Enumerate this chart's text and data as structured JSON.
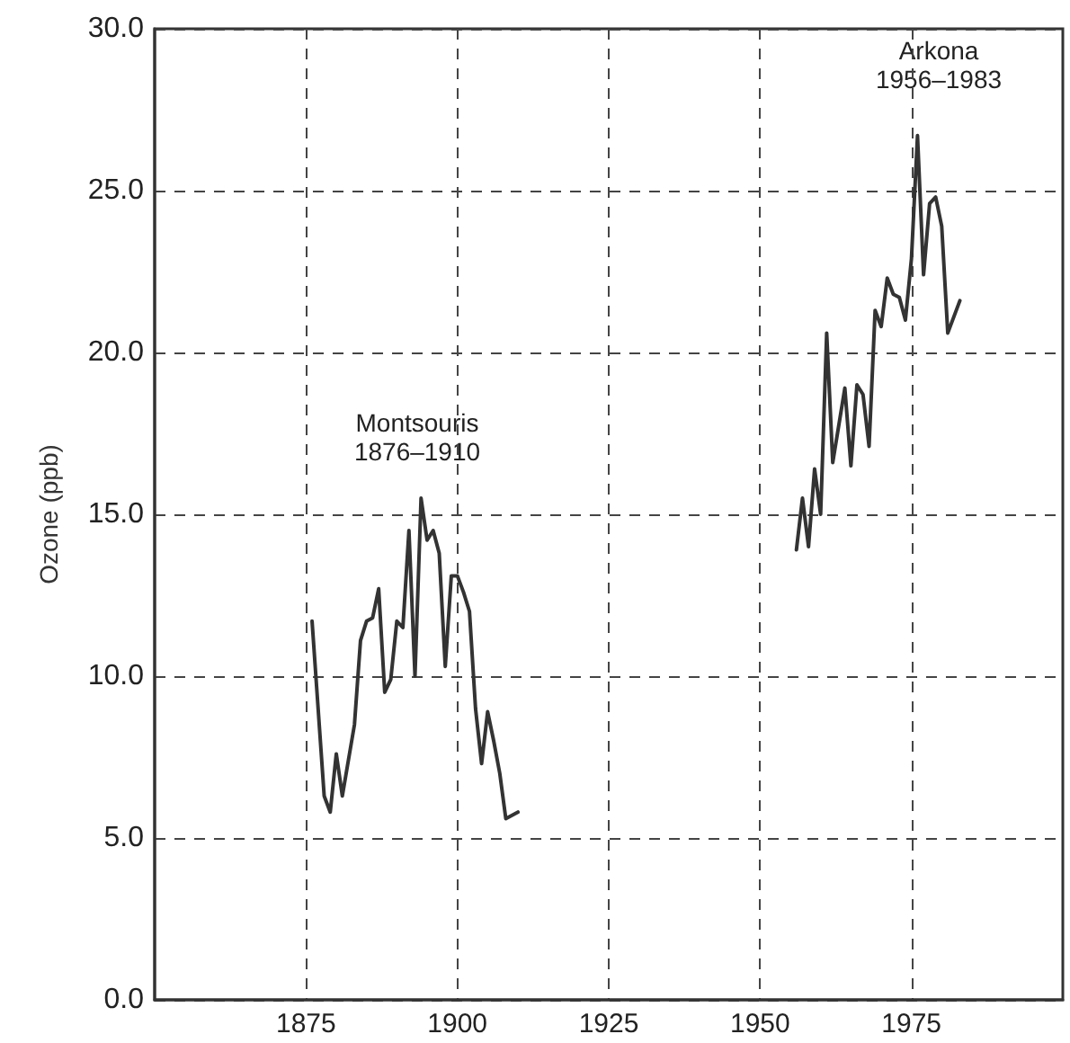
{
  "chart_data": {
    "type": "line",
    "ylabel": "Ozone (ppb)",
    "series": [
      {
        "color": "#333333",
        "x": [
          1876,
          1878,
          1879,
          1880,
          1881,
          1883,
          1884,
          1885,
          1886,
          1887,
          1888,
          1889,
          1890,
          1891,
          1892,
          1893,
          1894,
          1895,
          1896,
          1897,
          1898,
          1899,
          1900,
          1901,
          1902,
          1903,
          1904,
          1905,
          1906,
          1907,
          1908,
          1910
        ],
        "values": [
          11.7,
          6.3,
          5.8,
          7.6,
          6.3,
          8.5,
          11.1,
          11.7,
          11.8,
          12.7,
          9.5,
          9.9,
          11.7,
          11.5,
          14.5,
          10.0,
          15.5,
          14.2,
          14.5,
          13.8,
          10.3,
          13.1,
          13.1,
          12.6,
          12.0,
          9.0,
          7.3,
          8.9,
          8.0,
          7.0,
          5.6,
          5.8
        ]
      },
      {
        "color": "#333333",
        "x": [
          1956,
          1957,
          1958,
          1959,
          1960,
          1961,
          1962,
          1964,
          1965,
          1966,
          1967,
          1968,
          1969,
          1970,
          1971,
          1972,
          1973,
          1974,
          1975,
          1976,
          1977,
          1978,
          1979,
          1980,
          1981,
          1983
        ],
        "values": [
          13.9,
          15.5,
          14.0,
          16.4,
          15.0,
          20.6,
          16.6,
          18.9,
          16.5,
          19.0,
          18.7,
          17.1,
          21.3,
          20.8,
          22.3,
          21.8,
          21.7,
          21.0,
          22.9,
          26.7,
          22.4,
          24.6,
          24.8,
          23.9,
          20.6,
          21.6
        ]
      }
    ],
    "annotations": [
      "Montsouris\n1876–1910",
      "Arkona\n1956–1983"
    ],
    "xlim": [
      1850,
      2000
    ],
    "xticks": [
      1875,
      1900,
      1925,
      1950,
      1975
    ],
    "ylim": [
      0,
      30
    ],
    "yticks": [
      {
        "value": 0,
        "label": "0.0"
      },
      {
        "value": 5,
        "label": "5.0"
      },
      {
        "value": 10,
        "label": "10.0"
      },
      {
        "value": 15,
        "label": "15.0"
      },
      {
        "value": 20,
        "label": "20.0"
      },
      {
        "value": 25,
        "label": "25.0"
      },
      {
        "value": 30,
        "label": "30.0"
      }
    ],
    "grid": true,
    "marker": "none",
    "line_style": "solid"
  }
}
